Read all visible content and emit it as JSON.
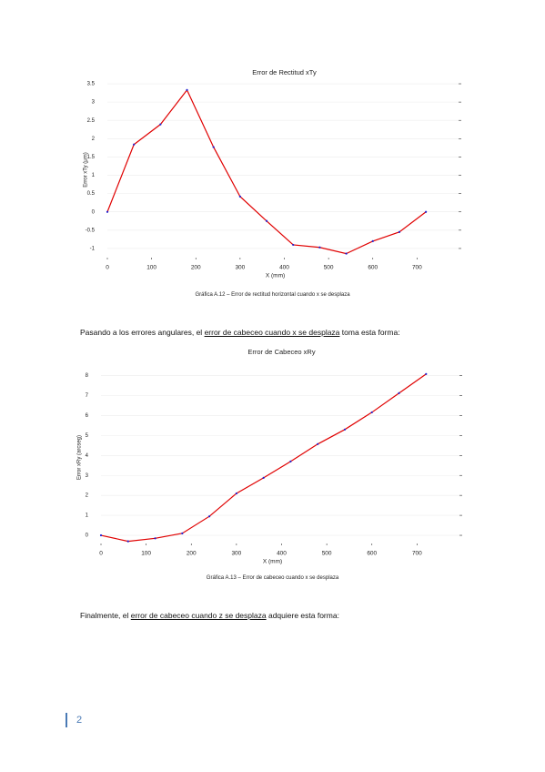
{
  "chart_data": [
    {
      "type": "line",
      "title": "Error de Rectitud xTy",
      "x_label": "X (mm)",
      "y_label": "Error xTy (μm)",
      "x": [
        0,
        60,
        120,
        180,
        240,
        300,
        360,
        420,
        480,
        540,
        600,
        660,
        720
      ],
      "series": [
        {
          "color": "#e00000",
          "marker_color": "#2020d0",
          "values": [
            0,
            1.84,
            2.39,
            3.33,
            1.77,
            0.42,
            -0.25,
            -0.9,
            -0.97,
            -1.14,
            -0.8,
            -0.55,
            0
          ]
        }
      ],
      "xlim": [
        0,
        800
      ],
      "xticks": [
        0,
        100,
        200,
        300,
        400,
        500,
        600,
        700
      ],
      "ylim": [
        -1.3,
        3.6
      ],
      "yticks": [
        -1,
        -0.5,
        0,
        0.5,
        1,
        1.5,
        2,
        2.5,
        3,
        3.5
      ],
      "grid": true
    },
    {
      "type": "line",
      "title": "Error de Cabeceo xRy",
      "x_label": "X (mm)",
      "y_label": "Error xRy (arcseg)",
      "x": [
        0,
        60,
        120,
        180,
        240,
        300,
        360,
        420,
        480,
        540,
        600,
        660,
        720
      ],
      "series": [
        {
          "color": "#e00000",
          "marker_color": "#2020d0",
          "values": [
            0,
            -0.3,
            -0.15,
            0.1,
            0.95,
            2.1,
            2.88,
            3.7,
            4.57,
            5.3,
            6.16,
            7.12,
            8.08
          ]
        }
      ],
      "xlim": [
        0,
        800
      ],
      "xticks": [
        0,
        100,
        200,
        300,
        400,
        500,
        600,
        700
      ],
      "ylim": [
        -0.5,
        8.3
      ],
      "yticks": [
        0,
        1,
        2,
        3,
        4,
        5,
        6,
        7,
        8
      ],
      "grid": true
    }
  ],
  "captions": [
    "Gráfica A.12 – Error de rectitud horizontal cuando x se desplaza",
    "Gráfica A.13 – Error de cabeceo cuando x se desplaza"
  ],
  "paragraphs": [
    {
      "before": "Pasando a los errores angulares, el ",
      "link": "error de cabeceo cuando x se desplaza",
      "after": " toma esta forma:"
    },
    {
      "before": "Finalmente, el ",
      "link": "error de cabeceo cuando z se desplaza",
      "after": " adquiere esta forma:"
    }
  ],
  "page_number": "2"
}
